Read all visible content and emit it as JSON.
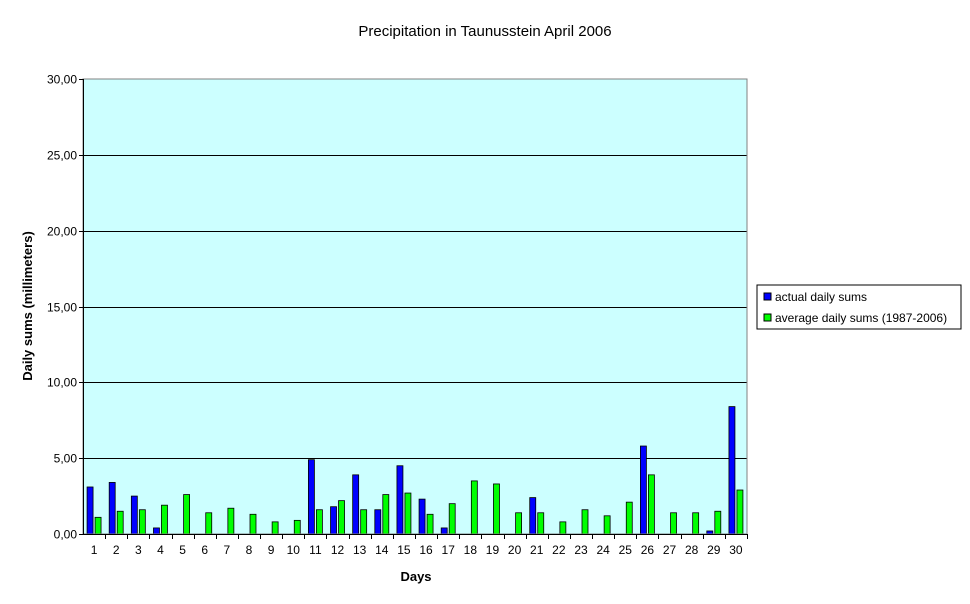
{
  "colors": {
    "plot_background": "#ccffff",
    "actual": "#0000ff",
    "average": "#00ff00",
    "gridline": "#000000",
    "bar_outline": "#000000"
  },
  "chart_data": {
    "type": "bar",
    "title": "Precipitation in Taunusstein  April  2006",
    "xlabel": "Days",
    "ylabel": "Daily sums  (millimeters)",
    "ylim": [
      0,
      30
    ],
    "ytick_labels": [
      "0,00",
      "5,00",
      "10,00",
      "15,00",
      "20,00",
      "25,00",
      "30,00"
    ],
    "grid": true,
    "legend_position": "right",
    "categories": [
      "1",
      "2",
      "3",
      "4",
      "5",
      "6",
      "7",
      "8",
      "9",
      "10",
      "11",
      "12",
      "13",
      "14",
      "15",
      "16",
      "17",
      "18",
      "19",
      "20",
      "21",
      "22",
      "23",
      "24",
      "25",
      "26",
      "27",
      "28",
      "29",
      "30"
    ],
    "series": [
      {
        "name": "actual daily sums",
        "color": "#0000ff",
        "values": [
          3.1,
          3.4,
          2.5,
          0.4,
          0,
          0,
          0,
          0,
          0,
          0,
          4.9,
          1.8,
          3.9,
          1.6,
          4.5,
          2.3,
          0.4,
          0,
          0,
          0,
          2.4,
          0,
          0,
          0,
          0,
          5.8,
          0,
          0,
          0.2,
          8.4
        ]
      },
      {
        "name": "average daily sums (1987-2006)",
        "color": "#00ff00",
        "values": [
          1.1,
          1.5,
          1.6,
          1.9,
          2.6,
          1.4,
          1.7,
          1.3,
          0.8,
          0.9,
          1.6,
          2.2,
          1.6,
          2.6,
          2.7,
          1.3,
          2.0,
          3.5,
          3.3,
          1.4,
          1.4,
          0.8,
          1.6,
          1.2,
          2.1,
          3.9,
          1.4,
          1.4,
          1.5,
          2.9
        ]
      }
    ]
  }
}
